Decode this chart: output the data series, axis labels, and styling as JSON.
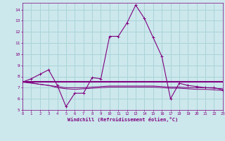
{
  "xlabel": "Windchill (Refroidissement éolien,°C)",
  "hours": [
    0,
    1,
    2,
    3,
    4,
    5,
    6,
    7,
    8,
    9,
    10,
    11,
    12,
    13,
    14,
    15,
    16,
    17,
    18,
    19,
    20,
    21,
    22,
    23
  ],
  "line1": [
    7.5,
    7.8,
    8.2,
    8.6,
    7.2,
    5.3,
    6.5,
    6.5,
    7.9,
    7.8,
    11.6,
    11.6,
    12.8,
    14.4,
    13.2,
    11.5,
    9.8,
    6.0,
    7.4,
    7.2,
    7.1,
    7.0,
    7.0,
    6.8
  ],
  "line2": [
    7.5,
    7.5,
    7.5,
    7.5,
    7.5,
    7.5,
    7.5,
    7.5,
    7.5,
    7.5,
    7.5,
    7.5,
    7.5,
    7.5,
    7.5,
    7.5,
    7.5,
    7.5,
    7.5,
    7.5,
    7.5,
    7.5,
    7.5,
    7.5
  ],
  "line3": [
    7.5,
    7.4,
    7.3,
    7.2,
    7.1,
    7.0,
    7.0,
    7.0,
    7.05,
    7.1,
    7.15,
    7.15,
    7.15,
    7.15,
    7.15,
    7.15,
    7.1,
    7.05,
    7.05,
    7.0,
    7.0,
    7.0,
    6.95,
    6.9
  ],
  "line4": [
    7.5,
    7.45,
    7.3,
    7.2,
    7.0,
    6.9,
    6.85,
    6.9,
    6.95,
    7.0,
    7.05,
    7.05,
    7.05,
    7.05,
    7.05,
    7.05,
    7.0,
    6.95,
    6.95,
    6.9,
    6.85,
    6.85,
    6.8,
    6.75
  ],
  "line_color": "#800080",
  "bg_color": "#cce8ec",
  "grid_color": "#aad4d8",
  "axis_color": "#800080",
  "ylim": [
    5,
    14.6
  ],
  "yticks": [
    5,
    6,
    7,
    8,
    9,
    10,
    11,
    12,
    13,
    14
  ],
  "xlim": [
    0,
    23
  ],
  "xticks": [
    0,
    1,
    2,
    3,
    4,
    5,
    6,
    7,
    8,
    9,
    10,
    11,
    12,
    13,
    14,
    15,
    16,
    17,
    18,
    19,
    20,
    21,
    22,
    23
  ]
}
